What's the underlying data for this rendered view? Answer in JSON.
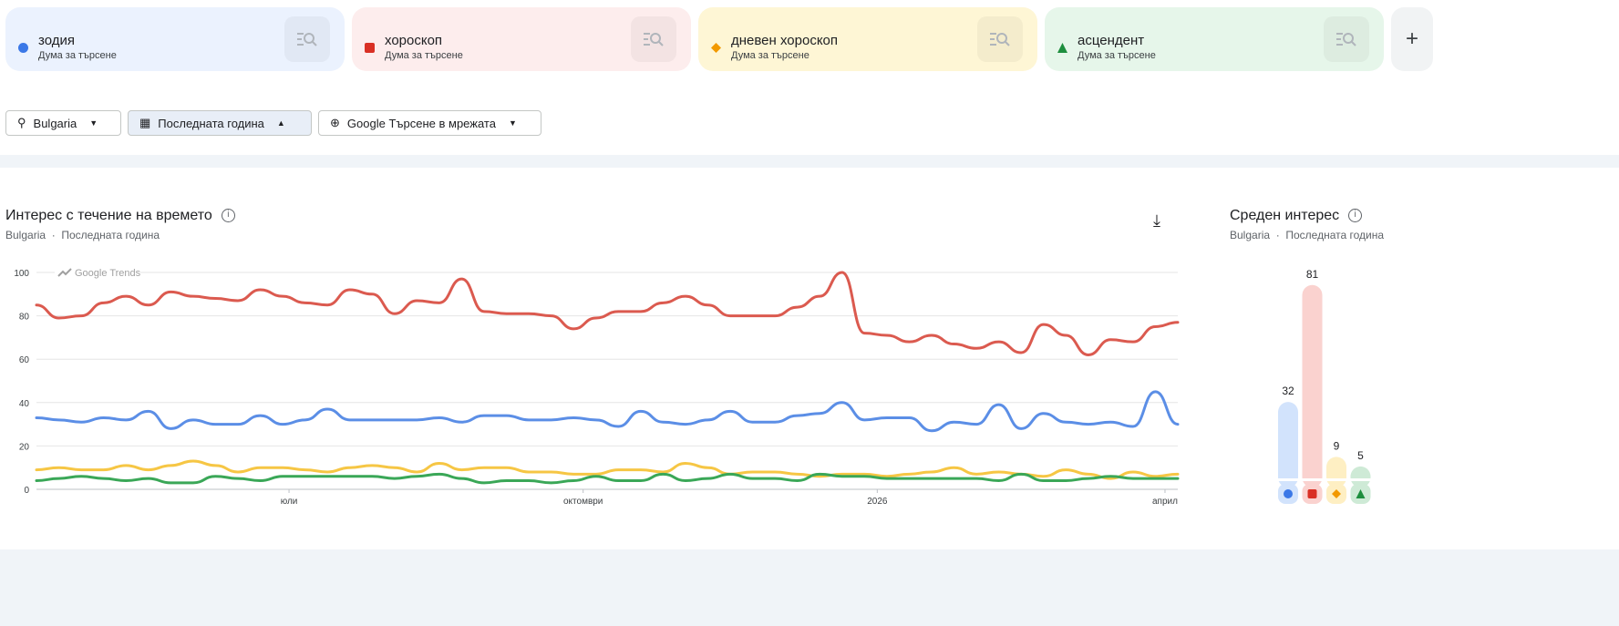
{
  "terms": [
    {
      "label": "зодия",
      "sub": "Дума за търсене",
      "color": "#3b78e7",
      "bg": "#ebf2fe",
      "marker": "circle"
    },
    {
      "label": "хороскоп",
      "sub": "Дума за търсене",
      "color": "#d93025",
      "bg": "#fdeded",
      "marker": "square"
    },
    {
      "label": "дневен хороскоп",
      "sub": "Дума за търсене",
      "color": "#f29900",
      "bg": "#fef6d5",
      "marker": "diamond"
    },
    {
      "label": "асцендент",
      "sub": "Дума за търсене",
      "color": "#1e8e3e",
      "bg": "#e6f6ea",
      "marker": "triangle"
    }
  ],
  "add_button": "+",
  "filters": {
    "region": "Bulgaria",
    "period": "Последната година",
    "property": "Google Търсене в мрежата"
  },
  "timeline": {
    "title": "Интерес с течение на времето",
    "meta_region": "Bulgaria",
    "meta_sep": "·",
    "meta_period": "Последната година",
    "watermark": "Google Trends"
  },
  "average": {
    "title": "Среден интерес",
    "meta_region": "Bulgaria",
    "meta_sep": "·",
    "meta_period": "Последната година"
  },
  "chart_data": [
    {
      "type": "line",
      "ylim": [
        0,
        100
      ],
      "yticks": [
        0,
        20,
        40,
        60,
        80,
        100
      ],
      "grid": true,
      "xlim": [
        "2025-04-13",
        "2026-04-05"
      ],
      "xticks": [
        {
          "date": "2025-07-01",
          "label": "юли"
        },
        {
          "date": "2025-10-01",
          "label": "октомври"
        },
        {
          "date": "2026-01-01",
          "label": "2026"
        },
        {
          "date": "2026-04-01",
          "label": "април"
        }
      ],
      "x": [
        "2025-04-13",
        "2025-04-20",
        "2025-04-27",
        "2025-05-04",
        "2025-05-11",
        "2025-05-18",
        "2025-05-25",
        "2025-06-01",
        "2025-06-08",
        "2025-06-15",
        "2025-06-22",
        "2025-06-29",
        "2025-07-06",
        "2025-07-13",
        "2025-07-20",
        "2025-07-27",
        "2025-08-03",
        "2025-08-10",
        "2025-08-17",
        "2025-08-24",
        "2025-08-31",
        "2025-09-07",
        "2025-09-14",
        "2025-09-21",
        "2025-09-28",
        "2025-10-05",
        "2025-10-12",
        "2025-10-19",
        "2025-10-26",
        "2025-11-02",
        "2025-11-09",
        "2025-11-16",
        "2025-11-23",
        "2025-11-30",
        "2025-12-07",
        "2025-12-14",
        "2025-12-21",
        "2025-12-28",
        "2026-01-04",
        "2026-01-11",
        "2026-01-18",
        "2026-01-25",
        "2026-02-01",
        "2026-02-08",
        "2026-02-15",
        "2026-02-22",
        "2026-03-01",
        "2026-03-08",
        "2026-03-15",
        "2026-03-22",
        "2026-03-29",
        "2026-04-05"
      ],
      "series": [
        {
          "name": "зодия",
          "color": "#5b8ee6",
          "values": [
            33,
            32,
            31,
            33,
            32,
            36,
            28,
            32,
            30,
            30,
            34,
            30,
            32,
            37,
            32,
            32,
            32,
            32,
            33,
            31,
            34,
            34,
            32,
            32,
            33,
            32,
            29,
            36,
            31,
            30,
            32,
            36,
            31,
            31,
            34,
            35,
            40,
            32,
            33,
            33,
            27,
            31,
            30,
            39,
            28,
            35,
            31,
            30,
            31,
            29,
            45,
            30
          ]
        },
        {
          "name": "хороскоп",
          "color": "#db5a4f",
          "values": [
            85,
            79,
            80,
            86,
            89,
            85,
            91,
            89,
            88,
            87,
            92,
            89,
            86,
            85,
            92,
            90,
            81,
            87,
            86,
            97,
            82,
            81,
            81,
            80,
            74,
            79,
            82,
            82,
            86,
            89,
            85,
            80,
            80,
            80,
            84,
            89,
            100,
            72,
            71,
            68,
            71,
            67,
            65,
            68,
            63,
            76,
            71,
            62,
            69,
            68,
            75,
            77
          ]
        },
        {
          "name": "дневен хороскоп",
          "color": "#f6c644",
          "values": [
            9,
            10,
            9,
            9,
            11,
            9,
            11,
            13,
            11,
            8,
            10,
            10,
            9,
            8,
            10,
            11,
            10,
            8,
            12,
            9,
            10,
            10,
            8,
            8,
            7,
            7,
            9,
            9,
            8,
            12,
            10,
            7,
            8,
            8,
            7,
            6,
            7,
            7,
            6,
            7,
            8,
            10,
            7,
            8,
            7,
            6,
            9,
            7,
            5,
            8,
            6,
            7
          ]
        },
        {
          "name": "асцендент",
          "color": "#3aa757",
          "values": [
            4,
            5,
            6,
            5,
            4,
            5,
            3,
            3,
            6,
            5,
            4,
            6,
            6,
            6,
            6,
            6,
            5,
            6,
            7,
            5,
            3,
            4,
            4,
            3,
            4,
            6,
            4,
            4,
            7,
            4,
            5,
            7,
            5,
            5,
            4,
            7,
            6,
            6,
            5,
            5,
            5,
            5,
            5,
            4,
            7,
            4,
            4,
            5,
            6,
            5,
            5,
            5
          ]
        }
      ]
    },
    {
      "type": "bar",
      "ylim": [
        0,
        100
      ],
      "categories": [
        "зодия",
        "хороскоп",
        "дневен хороскоп",
        "асцендент"
      ],
      "values": [
        32,
        81,
        9,
        5
      ],
      "colors": [
        "#d2e3fc",
        "#fad2cf",
        "#feefc3",
        "#ceead6"
      ]
    }
  ]
}
